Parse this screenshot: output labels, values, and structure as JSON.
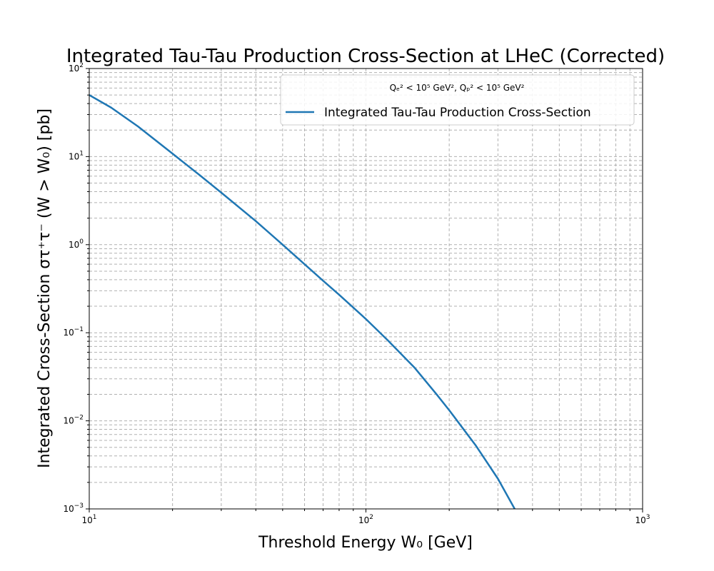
{
  "chart_data": {
    "type": "line",
    "title": "Integrated Tau-Tau Production Cross-Section at LHeC  (Corrected)",
    "xlabel": "Threshold Energy W₀ [GeV]",
    "ylabel": "Integrated Cross-Section στ⁺τ⁻  (W > W₀) [pb]",
    "xscale": "log",
    "yscale": "log",
    "xlim": [
      10,
      1000
    ],
    "ylim": [
      0.001,
      100
    ],
    "grid": true,
    "legend_placement": "top-right",
    "legend_title": "Qₑ² < 10⁵ GeV², Qₚ² < 10⁵ GeV²",
    "x_ticks": [
      {
        "base": "10",
        "exp": "1"
      },
      {
        "base": "10",
        "exp": "2"
      },
      {
        "base": "10",
        "exp": "3"
      }
    ],
    "y_ticks": [
      {
        "base": "10",
        "exp": "−3"
      },
      {
        "base": "10",
        "exp": "−2"
      },
      {
        "base": "10",
        "exp": "−1"
      },
      {
        "base": "10",
        "exp": "0"
      },
      {
        "base": "10",
        "exp": "1"
      },
      {
        "base": "10",
        "exp": "2"
      }
    ],
    "series": [
      {
        "name": "Integrated Tau-Tau Production Cross-Section",
        "color": "#1f77b4",
        "x": [
          10,
          12,
          15,
          20,
          25,
          30,
          40,
          50,
          60,
          70,
          80,
          100,
          120,
          150,
          180,
          200,
          250,
          300,
          350
        ],
        "y": [
          50,
          36,
          22,
          10.8,
          6.2,
          3.9,
          1.85,
          1.0,
          0.6,
          0.39,
          0.27,
          0.143,
          0.082,
          0.04,
          0.02,
          0.0132,
          0.0052,
          0.0022,
          0.00092
        ]
      }
    ]
  }
}
